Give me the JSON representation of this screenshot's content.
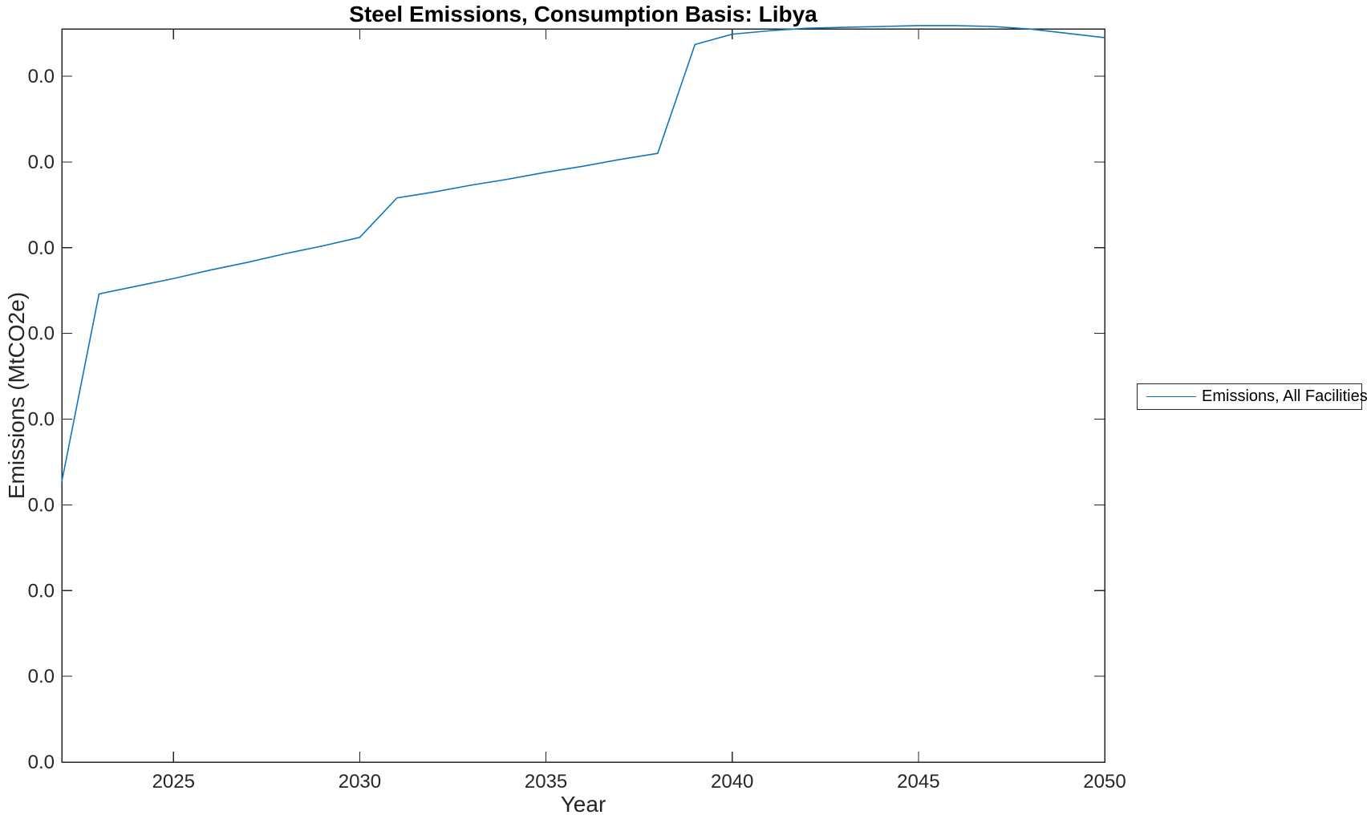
{
  "figure": {
    "title": "Steel Emissions, Consumption Basis: Libya",
    "xlabel": "Year",
    "ylabel": "Emissions (MtCO2e)",
    "legend": {
      "label": "Emissions, All Facilities"
    },
    "colors": {
      "line": "#0f75bd",
      "axis": "#262626",
      "tick_label": "#262626",
      "background": "#ffffff"
    }
  },
  "chart_data": {
    "type": "line",
    "title": "Steel Emissions, Consumption Basis: Libya",
    "xlabel": "Year",
    "ylabel": "Emissions (MtCO2e)",
    "legend": [
      "Emissions, All Facilities"
    ],
    "legend_position": "outside-right",
    "grid": false,
    "box": true,
    "xlim": [
      2022,
      2050
    ],
    "x_ticks": [
      2025,
      2030,
      2035,
      2040,
      2045,
      2050
    ],
    "x_tick_labels": [
      "2025",
      "2030",
      "2035",
      "2040",
      "2045",
      "2050"
    ],
    "y_tick_labels": [
      "0.0",
      "0.0",
      "0.0",
      "0.0",
      "0.0",
      "0.0",
      "0.0",
      "0.0",
      "0.0"
    ],
    "y_ticks_units": [
      8,
      7,
      6,
      5,
      4,
      3,
      2,
      1,
      0
    ],
    "ylim_units": [
      0,
      8.55
    ],
    "y_axis_note": "All y tick labels display 0.0 (values below rounding precision); series y values are expressed in y-gridline units where one tick spacing = 1 unit measured up from the x-axis.",
    "series": [
      {
        "name": "Emissions, All Facilities",
        "color": "#0f75bd",
        "x": [
          2022,
          2023,
          2024,
          2025,
          2026,
          2027,
          2028,
          2029,
          2030,
          2031,
          2032,
          2033,
          2034,
          2035,
          2036,
          2037,
          2038,
          2039,
          2040,
          2041,
          2042,
          2043,
          2044,
          2045,
          2046,
          2047,
          2048,
          2049,
          2050
        ],
        "y_units": [
          3.27,
          5.46,
          5.55,
          5.64,
          5.74,
          5.83,
          5.93,
          6.02,
          6.12,
          6.58,
          6.65,
          6.73,
          6.8,
          6.88,
          6.95,
          7.03,
          7.1,
          8.37,
          8.49,
          8.53,
          8.56,
          8.57,
          8.58,
          8.59,
          8.59,
          8.58,
          8.55,
          8.5,
          8.45
        ]
      }
    ]
  }
}
